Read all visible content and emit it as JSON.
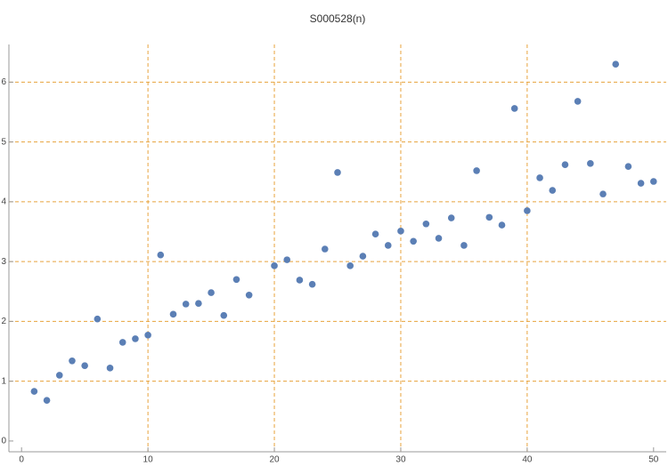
{
  "chart_data": {
    "type": "scatter",
    "title": "S000528(n)",
    "x": [
      1,
      2,
      3,
      4,
      5,
      6,
      7,
      8,
      9,
      10,
      11,
      12,
      13,
      14,
      15,
      16,
      17,
      18,
      20,
      21,
      22,
      23,
      24,
      25,
      26,
      27,
      28,
      29,
      30,
      31,
      32,
      33,
      34,
      35,
      36,
      37,
      38,
      39,
      40,
      41,
      42,
      43,
      44,
      45,
      46,
      47,
      48,
      49,
      50
    ],
    "series": [
      {
        "color": "#5b7fb5",
        "values": [
          0.83,
          0.68,
          1.1,
          1.34,
          1.26,
          2.04,
          1.22,
          1.65,
          1.71,
          1.77,
          3.11,
          2.12,
          2.29,
          2.3,
          2.48,
          2.1,
          2.7,
          2.44,
          2.93,
          3.03,
          2.69,
          2.62,
          3.21,
          4.49,
          2.93,
          3.09,
          3.46,
          3.27,
          3.51,
          3.34,
          3.63,
          3.39,
          3.73,
          3.27,
          4.52,
          3.74,
          3.61,
          5.56,
          3.85,
          4.4,
          4.19,
          4.62,
          5.68,
          4.64,
          4.13,
          6.3,
          4.59,
          4.31,
          4.34
        ]
      }
    ],
    "xlim": [
      -1,
      51
    ],
    "ylim": [
      -0.18,
      6.63
    ],
    "xticks": [
      0,
      10,
      20,
      30,
      40,
      50
    ],
    "yticks": [
      0,
      1,
      2,
      3,
      4,
      5,
      6
    ],
    "x_gridlines": [
      10,
      20,
      30,
      40
    ],
    "y_gridlines": [
      1,
      2,
      3,
      4,
      5,
      6
    ],
    "grid_color": "#e8a33d"
  }
}
